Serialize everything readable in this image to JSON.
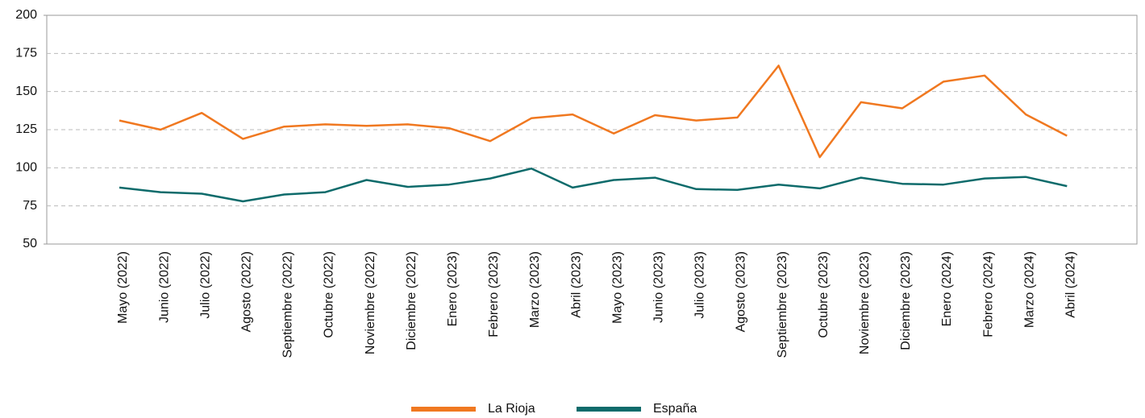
{
  "chart_data": {
    "type": "line",
    "categories": [
      "Mayo (2022)",
      "Junio (2022)",
      "Julio (2022)",
      "Agosto (2022)",
      "Septiembre (2022)",
      "Octubre (2022)",
      "Noviembre (2022)",
      "Diciembre (2022)",
      "Enero (2023)",
      "Febrero (2023)",
      "Marzo (2023)",
      "Abril (2023)",
      "Mayo (2023)",
      "Junio (2023)",
      "Julio (2023)",
      "Agosto (2023)",
      "Septiembre (2023)",
      "Octubre (2023)",
      "Noviembre (2023)",
      "Diciembre (2023)",
      "Enero (2024)",
      "Febrero (2024)",
      "Marzo (2024)",
      "Abril (2024)"
    ],
    "series": [
      {
        "name": "La Rioja",
        "color": "#f07820",
        "values": [
          131,
          125,
          136,
          119,
          127,
          128.5,
          127.5,
          128.5,
          126,
          117.5,
          132.5,
          135,
          122.5,
          134.5,
          131,
          133,
          167,
          107,
          143,
          139,
          156.5,
          160.5,
          135,
          121
        ]
      },
      {
        "name": "España",
        "color": "#0e6b6b",
        "values": [
          87,
          84,
          83,
          78,
          82.5,
          84,
          92,
          87.5,
          89,
          93,
          99.5,
          87,
          92,
          93.5,
          86,
          85.5,
          89,
          86.5,
          93.5,
          89.5,
          89,
          93,
          94,
          88
        ]
      }
    ],
    "ylim": [
      50,
      200
    ],
    "yticks": [
      50,
      75,
      100,
      125,
      150,
      175,
      200
    ],
    "grid": true,
    "legend": "bottom"
  }
}
